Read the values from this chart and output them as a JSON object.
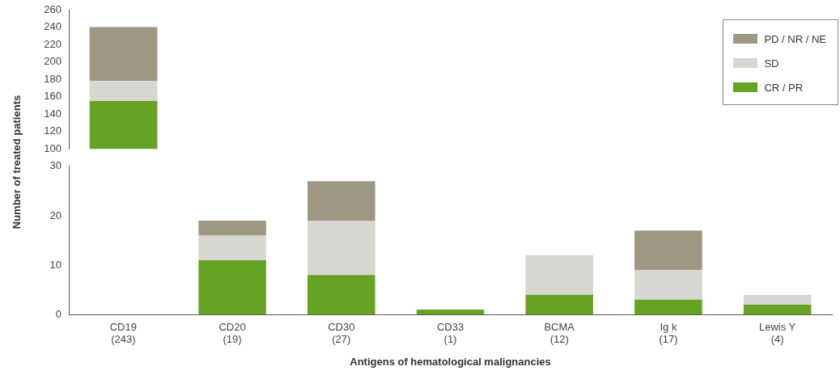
{
  "chart_data": [
    {
      "type": "bar",
      "stacked": true,
      "ylabel": "Number of treated patients",
      "legend": "top right",
      "tick_labels": "y",
      "grid": false,
      "categories": [
        null
      ],
      "ylim": [
        100,
        260
      ],
      "yticks": [
        100,
        120,
        140,
        160,
        180,
        200,
        220,
        240,
        260
      ],
      "series": [
        {
          "name": "CR / PR",
          "color": "#66a324",
          "values": [
            155
          ]
        },
        {
          "name": "SD",
          "color": "#d8d6d1",
          "values": [
            23
          ],
          "base": [
            155
          ]
        },
        {
          "name": "PD / NR / NE",
          "color": "#9e9784",
          "values": [
            62
          ],
          "base": [
            178
          ]
        }
      ]
    },
    {
      "type": "bar",
      "stacked": true,
      "xlabel": "Antigens of hematological malignancies",
      "grid": false,
      "categories": [
        "CD19\n(243)",
        "CD20\n(19)",
        "CD30\n(27)",
        "CD33\n(1)",
        "BCMA\n(12)",
        "Ig k\n(17)",
        "Lewis Y\n(4)"
      ],
      "ylim": [
        0,
        30
      ],
      "yticks": [
        0,
        10,
        20,
        30
      ],
      "series": [
        {
          "color": "#66a324",
          "values": [
            null,
            11,
            8,
            1,
            4,
            3,
            2
          ]
        },
        {
          "color": "#d8d6d1",
          "values": [
            null,
            5,
            11,
            0,
            8,
            6,
            2
          ]
        },
        {
          "color": "#9e9784",
          "values": [
            null,
            3,
            8,
            0,
            0,
            8,
            0
          ]
        }
      ]
    }
  ]
}
